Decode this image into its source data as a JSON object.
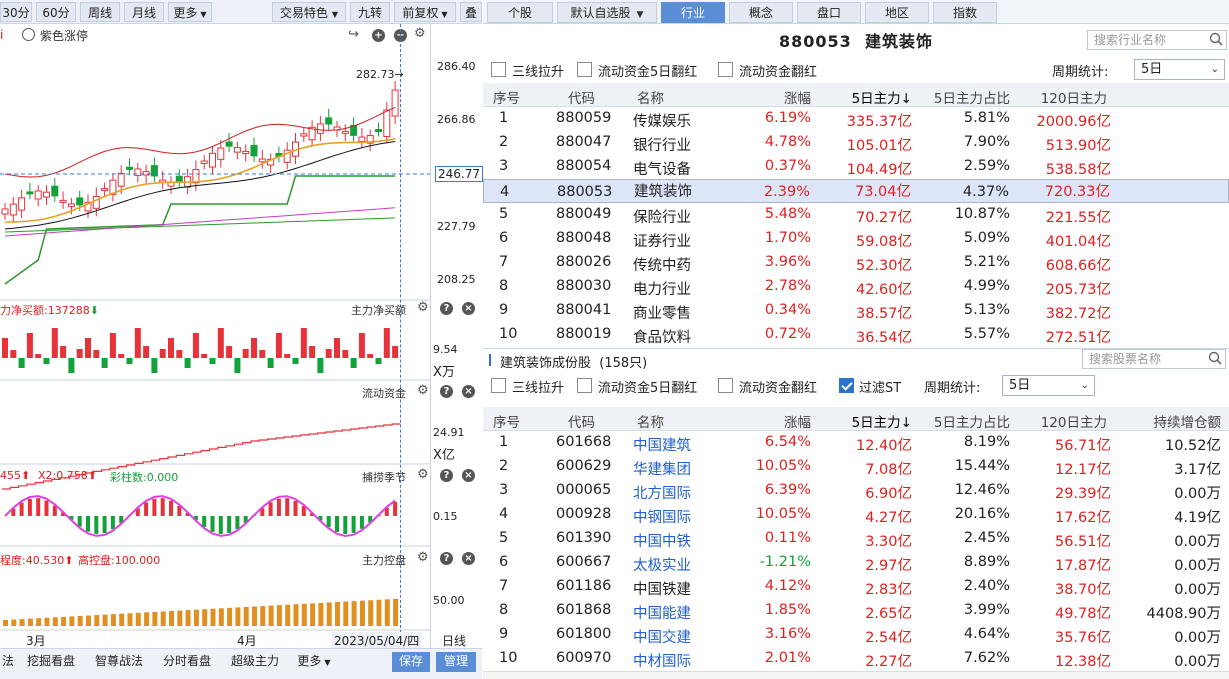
{
  "left": {
    "toolbar": [
      "30分",
      "60分",
      "周线",
      "月线",
      "更多",
      "交易特色",
      "九转",
      "前复权",
      "叠"
    ],
    "legend_toggle": "紫色涨停",
    "price_labels": [
      "286.40",
      "266.86",
      "246.77",
      "227.79",
      "208.25"
    ],
    "last_price": "282.73",
    "panels": {
      "p1": {
        "label": "力净买额:137288",
        "name": "主力净买额",
        "y": "9.54",
        "unit": "X万"
      },
      "p2": {
        "name": "流动资金",
        "y": "24.91",
        "unit": "X亿"
      },
      "p3": {
        "label_a": "455",
        "label_b": "X2:0.758",
        "label_c": "彩柱数:0.000",
        "name": "捕捞季节",
        "y": "0.15"
      },
      "p4": {
        "label_a": "程度:40.530",
        "label_b": "高控盘:100.000",
        "name": "主力控盘",
        "y": "50.00"
      }
    },
    "xaxis": {
      "m1": "3月",
      "m2": "4月",
      "date": "2023/05/04/四",
      "period": "日线"
    },
    "bottom": [
      "法",
      "挖掘看盘",
      "智尊战法",
      "分时看盘",
      "超级主力",
      "更多",
      "保存",
      "管理"
    ],
    "colors": {
      "up": "#e8323a",
      "down": "#13a13a",
      "ma1": "#e8a020",
      "ma2": "#111111",
      "env": "#cc2020",
      "vol": "#e09020"
    }
  },
  "tabs": [
    "个股",
    "默认自选股",
    "行业",
    "概念",
    "盘口",
    "地区",
    "指数"
  ],
  "active_tab": "行业",
  "header": {
    "code": "880053",
    "name": "建筑装饰",
    "search_placeholder": "搜索行业名称"
  },
  "filters1": {
    "a": "三线拉升",
    "b": "流动资金5日翻红",
    "c": "流动资金翻红",
    "period_label": "周期统计:",
    "period": "5日"
  },
  "table1": {
    "headers": [
      "序号",
      "代码",
      "名称",
      "涨幅",
      "5日主力↓",
      "5日主力占比",
      "120日主力"
    ],
    "rows": [
      [
        "1",
        "880059",
        "传媒娱乐",
        "6.19%",
        "335.37亿",
        "5.81%",
        "2000.96亿"
      ],
      [
        "2",
        "880047",
        "银行行业",
        "4.78%",
        "105.01亿",
        "7.90%",
        "513.90亿"
      ],
      [
        "3",
        "880054",
        "电气设备",
        "0.37%",
        "104.49亿",
        "2.59%",
        "538.58亿"
      ],
      [
        "4",
        "880053",
        "建筑装饰",
        "2.39%",
        "73.04亿",
        "4.37%",
        "720.33亿"
      ],
      [
        "5",
        "880049",
        "保险行业",
        "5.48%",
        "70.27亿",
        "10.87%",
        "221.55亿"
      ],
      [
        "6",
        "880048",
        "证券行业",
        "1.70%",
        "59.08亿",
        "5.09%",
        "401.04亿"
      ],
      [
        "7",
        "880026",
        "传统中药",
        "3.96%",
        "52.30亿",
        "5.21%",
        "608.66亿"
      ],
      [
        "8",
        "880030",
        "电力行业",
        "2.78%",
        "42.60亿",
        "4.99%",
        "205.73亿"
      ],
      [
        "9",
        "880041",
        "商业零售",
        "0.34%",
        "38.57亿",
        "5.13%",
        "382.72亿"
      ],
      [
        "10",
        "880019",
        "食品饮料",
        "0.72%",
        "36.54亿",
        "5.57%",
        "272.51亿"
      ]
    ]
  },
  "section2": {
    "title": "建筑装饰成份股",
    "count": "(158只)",
    "search_placeholder": "搜索股票名称"
  },
  "filters2": {
    "a": "三线拉升",
    "b": "流动资金5日翻红",
    "c": "流动资金翻红",
    "d": "过滤ST",
    "period_label": "周期统计:",
    "period": "5日"
  },
  "table2": {
    "headers": [
      "序号",
      "代码",
      "名称",
      "涨幅",
      "5日主力↓",
      "5日主力占比",
      "120日主力",
      "持续增仓额"
    ],
    "rows": [
      [
        "1",
        "601668",
        "中国建筑",
        "6.54%",
        "12.40亿",
        "8.19%",
        "56.71亿",
        "10.52亿"
      ],
      [
        "2",
        "600629",
        "华建集团",
        "10.05%",
        "7.08亿",
        "15.44%",
        "12.17亿",
        "3.17亿"
      ],
      [
        "3",
        "000065",
        "北方国际",
        "6.39%",
        "6.90亿",
        "12.46%",
        "29.39亿",
        "0.00万"
      ],
      [
        "4",
        "000928",
        "中钢国际",
        "10.05%",
        "4.27亿",
        "20.16%",
        "17.62亿",
        "4.19亿"
      ],
      [
        "5",
        "601390",
        "中国中铁",
        "0.11%",
        "3.30亿",
        "2.45%",
        "56.51亿",
        "0.00万"
      ],
      [
        "6",
        "600667",
        "太极实业",
        "-1.21%",
        "2.97亿",
        "8.89%",
        "17.87亿",
        "0.00万"
      ],
      [
        "7",
        "601186",
        "中国铁建",
        "4.12%",
        "2.83亿",
        "2.40%",
        "38.70亿",
        "0.00万"
      ],
      [
        "8",
        "601868",
        "中国能建",
        "1.85%",
        "2.65亿",
        "3.99%",
        "49.78亿",
        "4408.90万"
      ],
      [
        "9",
        "601800",
        "中国交建",
        "3.16%",
        "2.54亿",
        "4.64%",
        "35.76亿",
        "0.00万"
      ],
      [
        "10",
        "600970",
        "中材国际",
        "2.01%",
        "2.27亿",
        "7.62%",
        "12.38亿",
        "0.00万"
      ]
    ]
  }
}
